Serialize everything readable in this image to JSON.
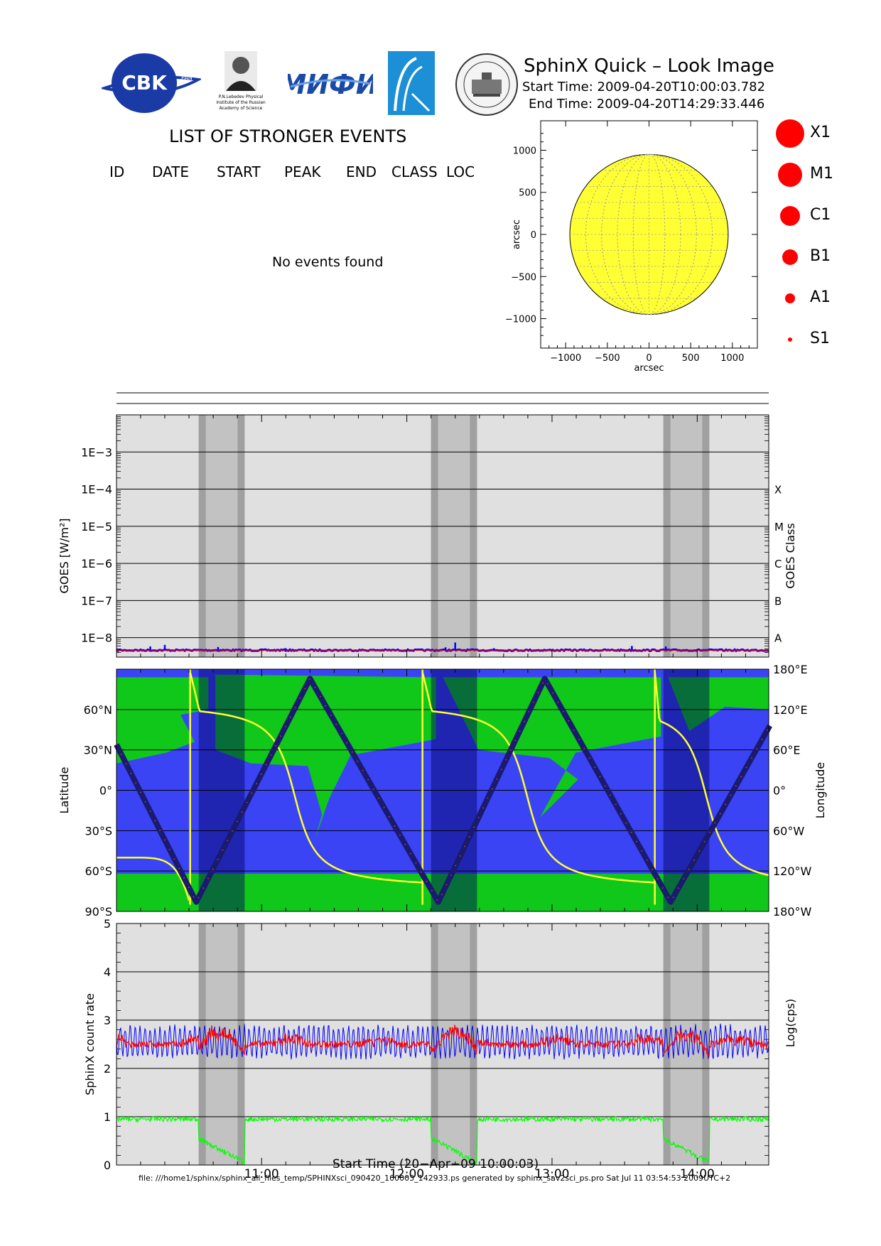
{
  "header": {
    "title": "SphinX Quick – Look Image",
    "start_time": "Start Time: 2009-04-20T10:00:03.782",
    "end_time": "End Time: 2009-04-20T14:29:33.446",
    "logos": [
      {
        "icon": "cbk-pan-logo",
        "text": "CBK"
      },
      {
        "icon": "lebedev-institute-logo",
        "caption": "P.N.Lebedev Physical Institute of the Russian Academy of Science"
      },
      {
        "icon": "mifi-logo",
        "text": "MИФИ"
      },
      {
        "icon": "spacecraft-logo"
      },
      {
        "icon": "university-seal-logo"
      }
    ]
  },
  "events": {
    "title": "LIST OF STRONGER EVENTS",
    "columns": [
      "ID",
      "DATE",
      "START",
      "PEAK",
      "END",
      "CLASS",
      "LOC"
    ],
    "message": "No events found"
  },
  "legend": {
    "items": [
      "X1",
      "M1",
      "C1",
      "B1",
      "A1",
      "S1"
    ],
    "color": "#ff0000"
  },
  "footer": {
    "text": "file: ///home1/sphinx/sphinx_all_files_temp/SPHINXsci_090420_100003_142933.ps generated by sphinx_sav2sci_ps.pro Sat Jul 11 03:54:53 2009UTC+2"
  },
  "colors": {
    "panel_bg": "#e0e0e0",
    "eclipse_band": "#c2c2c2",
    "eclipse_edge": "#a0a0a0",
    "sun_disk": "#ffff33",
    "map_blue": "#3b44f4",
    "map_green": "#10c81a",
    "goes_line": "#0000ff",
    "goes_red": "#ff0000",
    "sphinx_red": "#ff0000",
    "sphinx_blue": "#0000ff",
    "sphinx_green": "#00ff00",
    "footprint_yellow": "#ffff33",
    "orbit_track": "#1a1a6e"
  },
  "chart_data": [
    {
      "type": "scatter",
      "name_on_chart": "solar disk map",
      "xlabel": "arcsec",
      "ylabel": "arcsec",
      "xlim": [
        -1300,
        1300
      ],
      "ylim": [
        -1350,
        1350
      ],
      "xticks": [
        "−1000",
        "−500",
        "0",
        "500",
        "1000"
      ],
      "yticks": [
        "1000",
        "500",
        "0",
        "−500",
        "−1000"
      ],
      "disk_radius": 950,
      "grid": true,
      "points": []
    },
    {
      "type": "line",
      "ylabel": "GOES [W/m²]",
      "y2label": "GOES Class",
      "yscale": "log",
      "ylim": [
        3e-09,
        0.01
      ],
      "yticks": [
        {
          "v": 0.001,
          "label": "1E−3"
        },
        {
          "v": 0.0001,
          "label": "1E−4"
        },
        {
          "v": 1e-05,
          "label": "1E−5"
        },
        {
          "v": 1e-06,
          "label": "1E−6"
        },
        {
          "v": 1e-07,
          "label": "1E−7"
        },
        {
          "v": 1e-08,
          "label": "1E−8"
        }
      ],
      "classes": [
        {
          "v": 0.0001,
          "label": "X"
        },
        {
          "v": 1e-05,
          "label": "M"
        },
        {
          "v": 1e-06,
          "label": "C"
        },
        {
          "v": 1e-07,
          "label": "B"
        },
        {
          "v": 1e-08,
          "label": "A"
        }
      ],
      "baseline": 4.6e-09,
      "spikes": [
        {
          "t": "10:14",
          "v": 5.8e-09
        },
        {
          "t": "10:20",
          "v": 6.4e-09
        },
        {
          "t": "10:42",
          "v": 5.6e-09
        },
        {
          "t": "11:10",
          "v": 5.2e-09
        },
        {
          "t": "12:16",
          "v": 5.5e-09
        },
        {
          "t": "12:20",
          "v": 7.4e-09
        },
        {
          "t": "12:36",
          "v": 5.2e-09
        },
        {
          "t": "13:33",
          "v": 6e-09
        },
        {
          "t": "13:47",
          "v": 5.8e-09
        }
      ]
    },
    {
      "type": "line",
      "ylabel": "Latitude",
      "y2label": "Longitude",
      "ylim": [
        -90,
        90
      ],
      "yticks": [
        {
          "v": 60,
          "label": "60°N"
        },
        {
          "v": 30,
          "label": "30°N"
        },
        {
          "v": 0,
          "label": "0°"
        },
        {
          "v": -30,
          "label": "30°S"
        },
        {
          "v": -60,
          "label": "60°S"
        },
        {
          "v": -90,
          "label": "90°S"
        }
      ],
      "y2ticks": [
        {
          "v": 180,
          "label": "180°E"
        },
        {
          "v": 120,
          "label": "120°E"
        },
        {
          "v": 60,
          "label": "60°E"
        },
        {
          "v": 0,
          "label": "0°"
        },
        {
          "v": -60,
          "label": "60°W"
        },
        {
          "v": -120,
          "label": "120°W"
        },
        {
          "v": -180,
          "label": "180°W"
        }
      ],
      "latitude_track": [
        {
          "t": "10:00",
          "lat": 34
        },
        {
          "t": "10:33",
          "lat": -83
        },
        {
          "t": "11:20",
          "lat": 83
        },
        {
          "t": "12:13",
          "lat": -83
        },
        {
          "t": "12:57",
          "lat": 83
        },
        {
          "t": "13:49",
          "lat": -83
        },
        {
          "t": "14:30",
          "lat": 48
        }
      ]
    },
    {
      "type": "line",
      "ylabel": "SphinX count rate",
      "y2label": "Log(cps)",
      "ylim": [
        0,
        5
      ],
      "yticks": [
        0,
        1,
        2,
        3,
        4,
        5
      ],
      "series": [
        {
          "color": "#ff0000",
          "level": 2.5
        },
        {
          "color": "#0000ff",
          "level": 2.55,
          "amplitude": 0.3
        },
        {
          "color": "#00ff00",
          "level": 0.95
        }
      ]
    }
  ],
  "time_axis": {
    "xlabel": "Start Time (20−Apr−09 10:00:03)",
    "start": "10:00:03",
    "end": "14:29:33",
    "ticks": [
      "11:00",
      "12:00",
      "13:00",
      "14:00"
    ],
    "eclipses": [
      {
        "from": "10:34",
        "to": "10:53"
      },
      {
        "from": "12:10",
        "to": "12:29"
      },
      {
        "from": "13:46",
        "to": "14:05"
      }
    ]
  }
}
